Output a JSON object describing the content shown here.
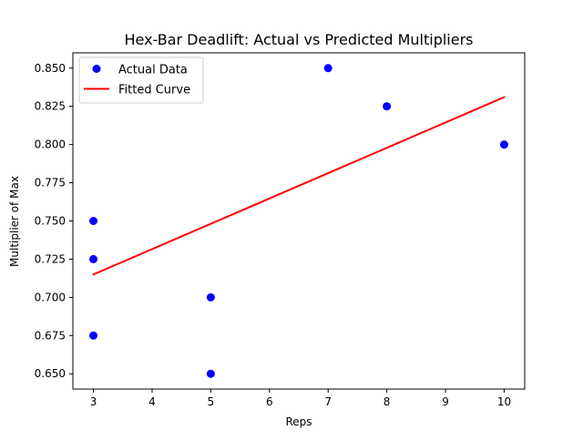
{
  "chart_data": {
    "type": "scatter",
    "title": "Hex-Bar Deadlift: Actual vs Predicted Multipliers",
    "xlabel": "Reps",
    "ylabel": "Multiplier of Max",
    "xlim": [
      2.65,
      10.35
    ],
    "ylim": [
      0.64,
      0.86
    ],
    "xticks": [
      3,
      4,
      5,
      6,
      7,
      8,
      9,
      10
    ],
    "yticks": [
      0.65,
      0.675,
      0.7,
      0.725,
      0.75,
      0.775,
      0.8,
      0.825,
      0.85
    ],
    "xtick_labels": [
      "3",
      "4",
      "5",
      "6",
      "7",
      "8",
      "9",
      "10"
    ],
    "ytick_labels": [
      "0.650",
      "0.675",
      "0.700",
      "0.725",
      "0.750",
      "0.775",
      "0.800",
      "0.825",
      "0.850"
    ],
    "grid": false,
    "legend_position": "upper-left",
    "series": [
      {
        "name": "Actual Data",
        "kind": "scatter",
        "color": "#0000ff",
        "x": [
          3,
          3,
          3,
          5,
          5,
          7,
          8,
          10
        ],
        "y": [
          0.75,
          0.725,
          0.675,
          0.7,
          0.65,
          0.85,
          0.825,
          0.8
        ]
      },
      {
        "name": "Fitted Curve",
        "kind": "line",
        "color": "#ff0000",
        "x": [
          3,
          10
        ],
        "y": [
          0.715,
          0.831
        ]
      }
    ]
  }
}
